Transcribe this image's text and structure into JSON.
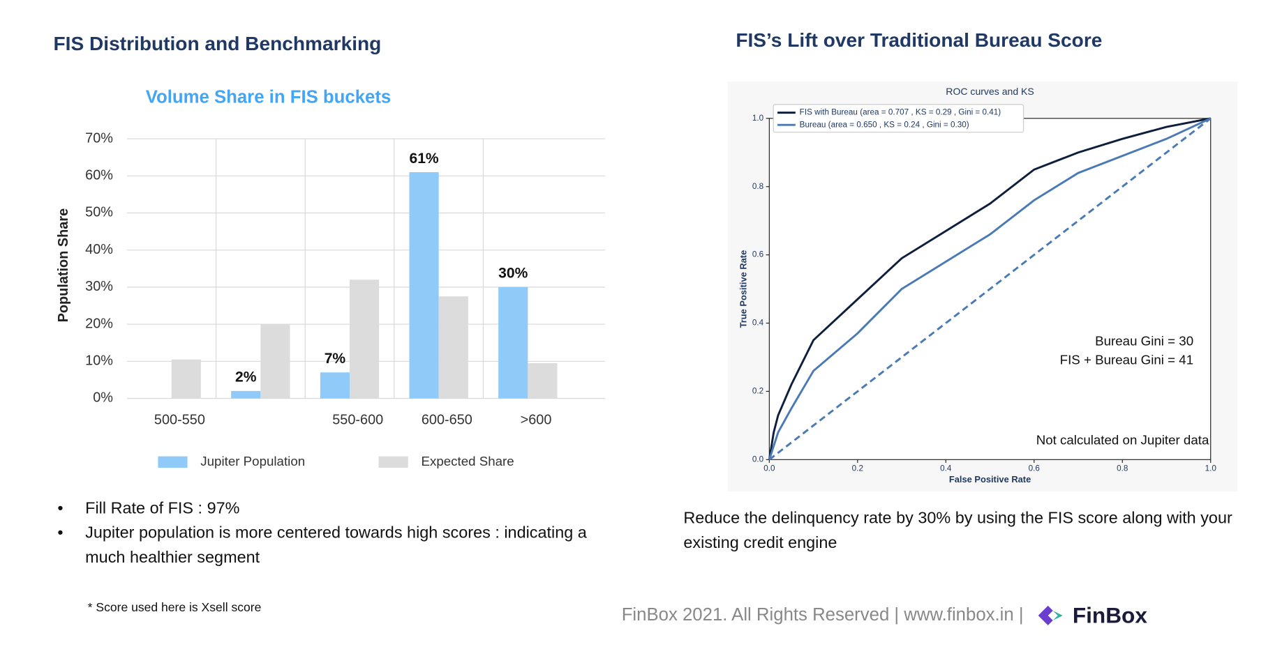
{
  "slide": {
    "left_heading": "FIS Distribution and Benchmarking",
    "right_heading": "FIS’s Lift over Traditional Bureau Score",
    "bullets": [
      "Fill Rate of FIS  : 97%",
      "Jupiter population is more centered towards high scores : indicating a much healthier segment"
    ],
    "note": "* Score used here is Xsell score",
    "right_text": "Reduce the delinquency rate by 30% by using the FIS score along with your existing credit engine",
    "footer": "FinBox 2021. All Rights Reserved | www.finbox.in |",
    "logo": "FinBox"
  },
  "chart_data": [
    {
      "type": "bar",
      "title": "Volume Share in FIS buckets",
      "y_label": "Population Share",
      "categories": [
        "500-550",
        null,
        "550-600",
        "600-650",
        ">600"
      ],
      "series": [
        {
          "name": "Jupiter Population",
          "color": "#90caf9",
          "values": [
            0,
            2,
            7,
            61,
            30
          ],
          "value_labels": [
            null,
            "2%",
            "7%",
            "61%",
            "30%"
          ]
        },
        {
          "name": "Expected Share",
          "color": "#dcdcdc",
          "values": [
            10.5,
            20,
            32,
            27.5,
            9.5
          ]
        }
      ],
      "ylim": [
        0,
        70
      ],
      "yticks": [
        {
          "value": 0,
          "label": "0%"
        },
        {
          "value": 10,
          "label": "10%"
        },
        {
          "value": 20,
          "label": "20%"
        },
        {
          "value": 30,
          "label": "30%"
        },
        {
          "value": 40,
          "label": "40%"
        },
        {
          "value": 50,
          "label": "50%"
        },
        {
          "value": 60,
          "label": "60%"
        },
        {
          "value": 70,
          "label": "70%"
        }
      ],
      "grid": true,
      "legend": "bottom"
    },
    {
      "type": "line",
      "title": "ROC curves and KS",
      "x_label": "False Positive Rate",
      "y_label": "True Positive Rate",
      "x": [
        0,
        0.01,
        0.02,
        0.05,
        0.1,
        0.2,
        0.3,
        0.4,
        0.5,
        0.6,
        0.7,
        0.8,
        0.9,
        1.0
      ],
      "series": [
        {
          "name": "FIS with Bureau (area = 0.707 , KS = 0.29 , Gini = 0.41)",
          "color": "#0d1f3c",
          "values": [
            0,
            0.08,
            0.13,
            0.22,
            0.35,
            0.47,
            0.59,
            0.67,
            0.75,
            0.85,
            0.9,
            0.94,
            0.975,
            1.0
          ]
        },
        {
          "name": "Bureau (area = 0.650 , KS = 0.24 , Gini = 0.30)",
          "color": "#4a7ab5",
          "values": [
            0,
            0.04,
            0.08,
            0.15,
            0.26,
            0.37,
            0.5,
            0.58,
            0.66,
            0.76,
            0.84,
            0.89,
            0.94,
            1.0
          ]
        }
      ],
      "xlim": [
        0,
        1
      ],
      "ylim": [
        0,
        1
      ],
      "xticks": [
        {
          "value": 0,
          "label": "0.0"
        },
        0.2,
        0.4,
        0.6,
        0.8,
        {
          "value": 1,
          "label": "1.0"
        }
      ],
      "yticks": [
        {
          "value": 0,
          "label": "0.0"
        },
        0.2,
        0.4,
        0.6,
        0.8,
        {
          "value": 1,
          "label": "1.0"
        }
      ],
      "annotations": [
        "Bureau Gini  = 30",
        "FIS + Bureau Gini = 41",
        "Not calculated on Jupiter data"
      ],
      "legend": "upper left"
    }
  ]
}
